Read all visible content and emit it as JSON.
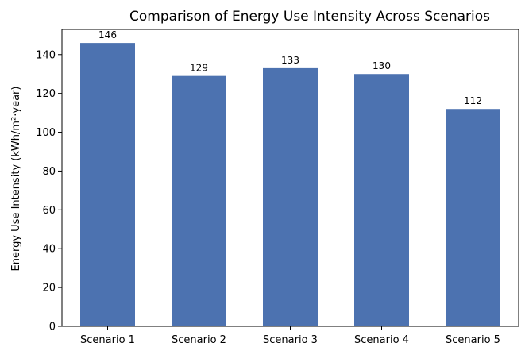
{
  "chart_data": {
    "type": "bar",
    "title": "Comparison of Energy Use Intensity Across Scenarios",
    "xlabel": "",
    "ylabel": "Energy Use Intensity (kWh/m²·year)",
    "categories": [
      "Scenario 1",
      "Scenario 2",
      "Scenario 3",
      "Scenario 4",
      "Scenario 5"
    ],
    "values": [
      146,
      129,
      133,
      130,
      112
    ],
    "data_labels": [
      "146",
      "129",
      "133",
      "130",
      "112"
    ],
    "ylim": [
      0,
      153
    ],
    "yticks": [
      0,
      20,
      40,
      60,
      80,
      100,
      120,
      140
    ],
    "ytick_labels": [
      "0",
      "20",
      "40",
      "60",
      "80",
      "100",
      "120",
      "140"
    ],
    "grid": false,
    "legend": "none",
    "bar_color": "#4c72b0"
  }
}
